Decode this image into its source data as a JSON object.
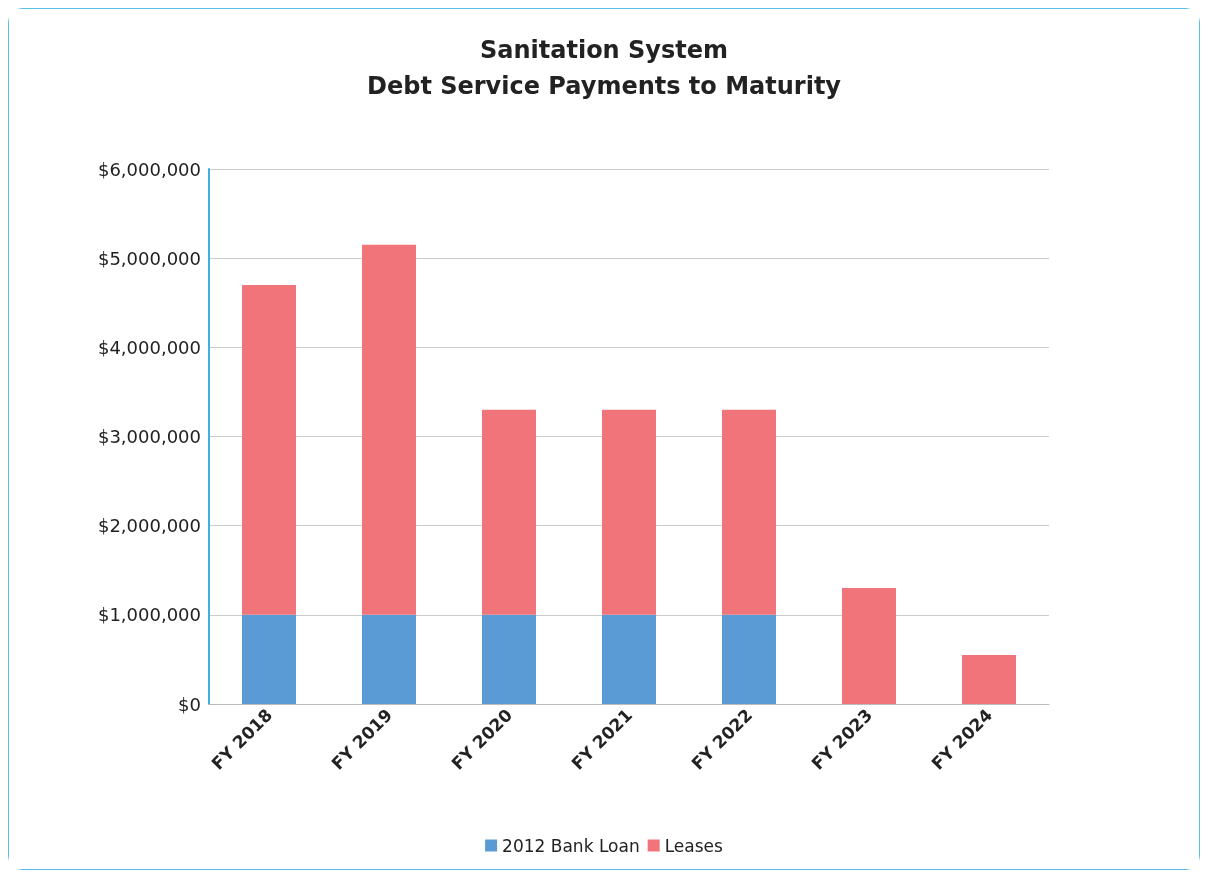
{
  "chart_data": {
    "type": "bar",
    "title": "Sanitation System\nDebt Service Payments to Maturity",
    "categories": [
      "FY 2018",
      "FY 2019",
      "FY 2020",
      "FY 2021",
      "FY 2022",
      "FY 2023",
      "FY 2024"
    ],
    "stacked": true,
    "series": [
      {
        "name": "2012 Bank Loan",
        "color": "#5b9bd5",
        "values": [
          1000000,
          1000000,
          1000000,
          1000000,
          1000000,
          0,
          0
        ]
      },
      {
        "name": "Leases",
        "color": "#f0747a",
        "values": [
          3700000,
          4150000,
          2300000,
          2300000,
          2300000,
          1300000,
          550000
        ]
      }
    ],
    "ylim": [
      0,
      6000000
    ],
    "yticks": [
      {
        "value": 0,
        "label": "$0"
      },
      {
        "value": 1000000,
        "label": "$1,000,000"
      },
      {
        "value": 2000000,
        "label": "$2,000,000"
      },
      {
        "value": 3000000,
        "label": "$3,000,000"
      },
      {
        "value": 4000000,
        "label": "$4,000,000"
      },
      {
        "value": 5000000,
        "label": "$5,000,000"
      },
      {
        "value": 6000000,
        "label": "$6,000,000"
      }
    ],
    "grid": "y",
    "legend": "bottom"
  }
}
